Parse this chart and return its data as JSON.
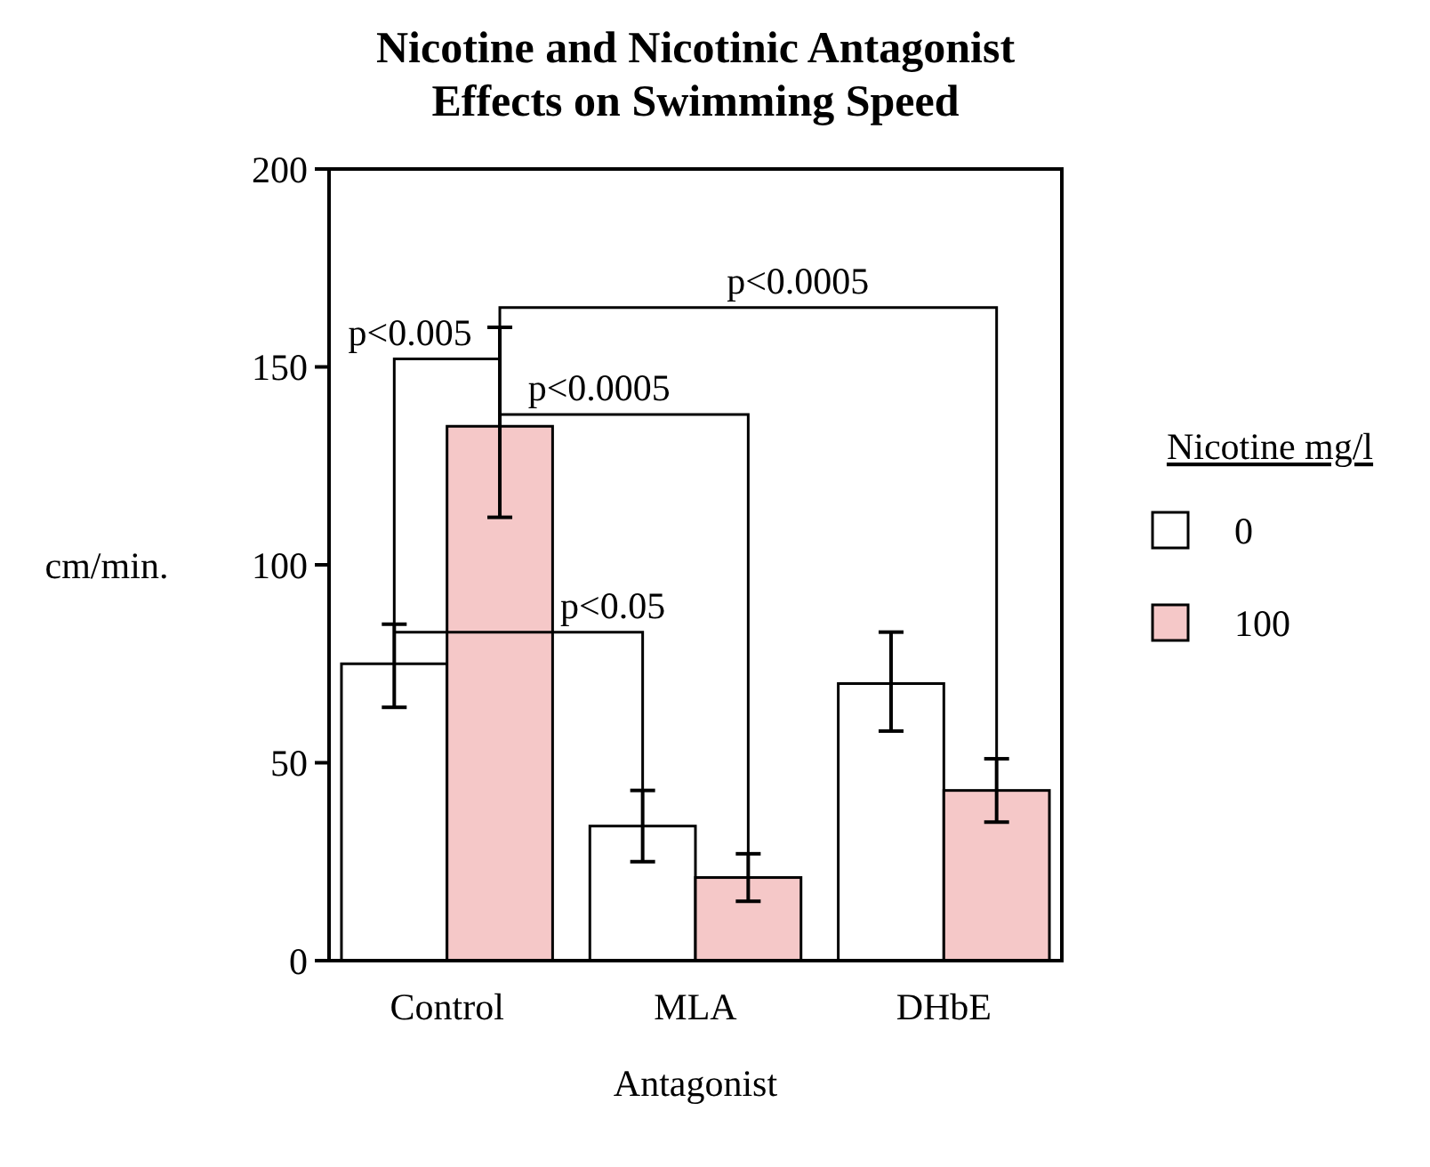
{
  "chart_data": {
    "type": "bar",
    "title": "Nicotine and Nicotinic Antagonist\nEffects on Swimming Speed",
    "xlabel": "Antagonist",
    "ylabel": "cm/min.",
    "legend_title": "Nicotine mg/l",
    "categories": [
      "Control",
      "MLA",
      "DHbE"
    ],
    "series": [
      {
        "name": "0",
        "color": "#ffffff",
        "values": [
          75,
          34,
          70
        ],
        "errors": [
          [
            64,
            85
          ],
          [
            25,
            43
          ],
          [
            58,
            83
          ]
        ]
      },
      {
        "name": "100",
        "color": "#f5c8c8",
        "values": [
          135,
          21,
          43
        ],
        "errors": [
          [
            112,
            160
          ],
          [
            15,
            27
          ],
          [
            35,
            51
          ]
        ]
      }
    ],
    "ylim": [
      0,
      200
    ],
    "yticks": [
      0,
      50,
      100,
      150,
      200
    ],
    "grid": false,
    "legend": "right",
    "annotations": [
      "p<0.005",
      "p<0.0005",
      "p<0.0005",
      "p<0.05"
    ]
  }
}
